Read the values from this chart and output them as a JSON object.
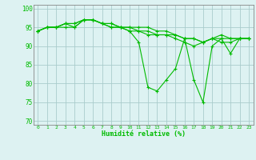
{
  "background_color": "#ddf2f2",
  "grid_color": "#aacccc",
  "line_color": "#00bb00",
  "xlabel": "Humidité relative (%)",
  "ylabel_ticks": [
    70,
    75,
    80,
    85,
    90,
    95,
    100
  ],
  "xlim": [
    -0.5,
    23.5
  ],
  "ylim": [
    69,
    101
  ],
  "series": [
    [
      94,
      95,
      95,
      95,
      95,
      97,
      97,
      96,
      95,
      95,
      94,
      91,
      79,
      78,
      81,
      84,
      92,
      81,
      75,
      90,
      92,
      88,
      92,
      92
    ],
    [
      94,
      95,
      95,
      96,
      95,
      97,
      97,
      96,
      95,
      95,
      94,
      94,
      93,
      93,
      93,
      93,
      92,
      92,
      91,
      92,
      92,
      92,
      92,
      92
    ],
    [
      94,
      95,
      95,
      96,
      96,
      97,
      97,
      96,
      96,
      95,
      95,
      95,
      95,
      94,
      94,
      93,
      92,
      92,
      91,
      92,
      93,
      92,
      92,
      92
    ],
    [
      94,
      95,
      95,
      96,
      96,
      97,
      97,
      96,
      96,
      95,
      95,
      94,
      94,
      93,
      93,
      92,
      91,
      90,
      91,
      92,
      91,
      91,
      92,
      92
    ]
  ]
}
